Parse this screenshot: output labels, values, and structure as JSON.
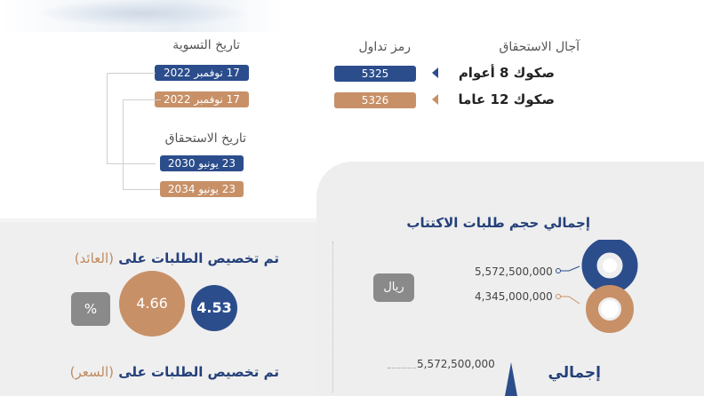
{
  "headers": {
    "maturity_terms": "آجال الاستحقاق",
    "trading_code": "رمز تداول",
    "settlement_date": "تاريخ التسوية",
    "maturity_date": "تاريخ الاستحقاق"
  },
  "bonds": [
    {
      "label": "صكوك 8 أعوام",
      "code": "5325",
      "settlement": "17 نوفمبر 2022",
      "maturity": "23 يونيو 2030",
      "color": "#2b4d8c"
    },
    {
      "label": "صكوك 12 عاما",
      "code": "5326",
      "settlement": "17 نوفمبر 2022",
      "maturity": "23 يونيو 2034",
      "color": "#c89067"
    }
  ],
  "subscription": {
    "title": "إجمالي حجم طلبات الاكتتاب",
    "currency": "ريال",
    "amounts": [
      "5,572,500,000",
      "4,345,000,000"
    ]
  },
  "allocation_yield": {
    "title_main": "تم تخصيص الطلبات على",
    "title_sub": "(العائد)",
    "values": [
      "4.53",
      "4.66"
    ],
    "unit": "%"
  },
  "allocation_price": {
    "title_main": "تم تخصيص الطلبات على",
    "title_sub": "(السعر)"
  },
  "bottom": {
    "amount": "5,572,500,000",
    "title_fragment": "إجمالي"
  },
  "colors": {
    "navy": "#2b4d8c",
    "tan": "#c89067",
    "gray": "#8a8a8a"
  }
}
